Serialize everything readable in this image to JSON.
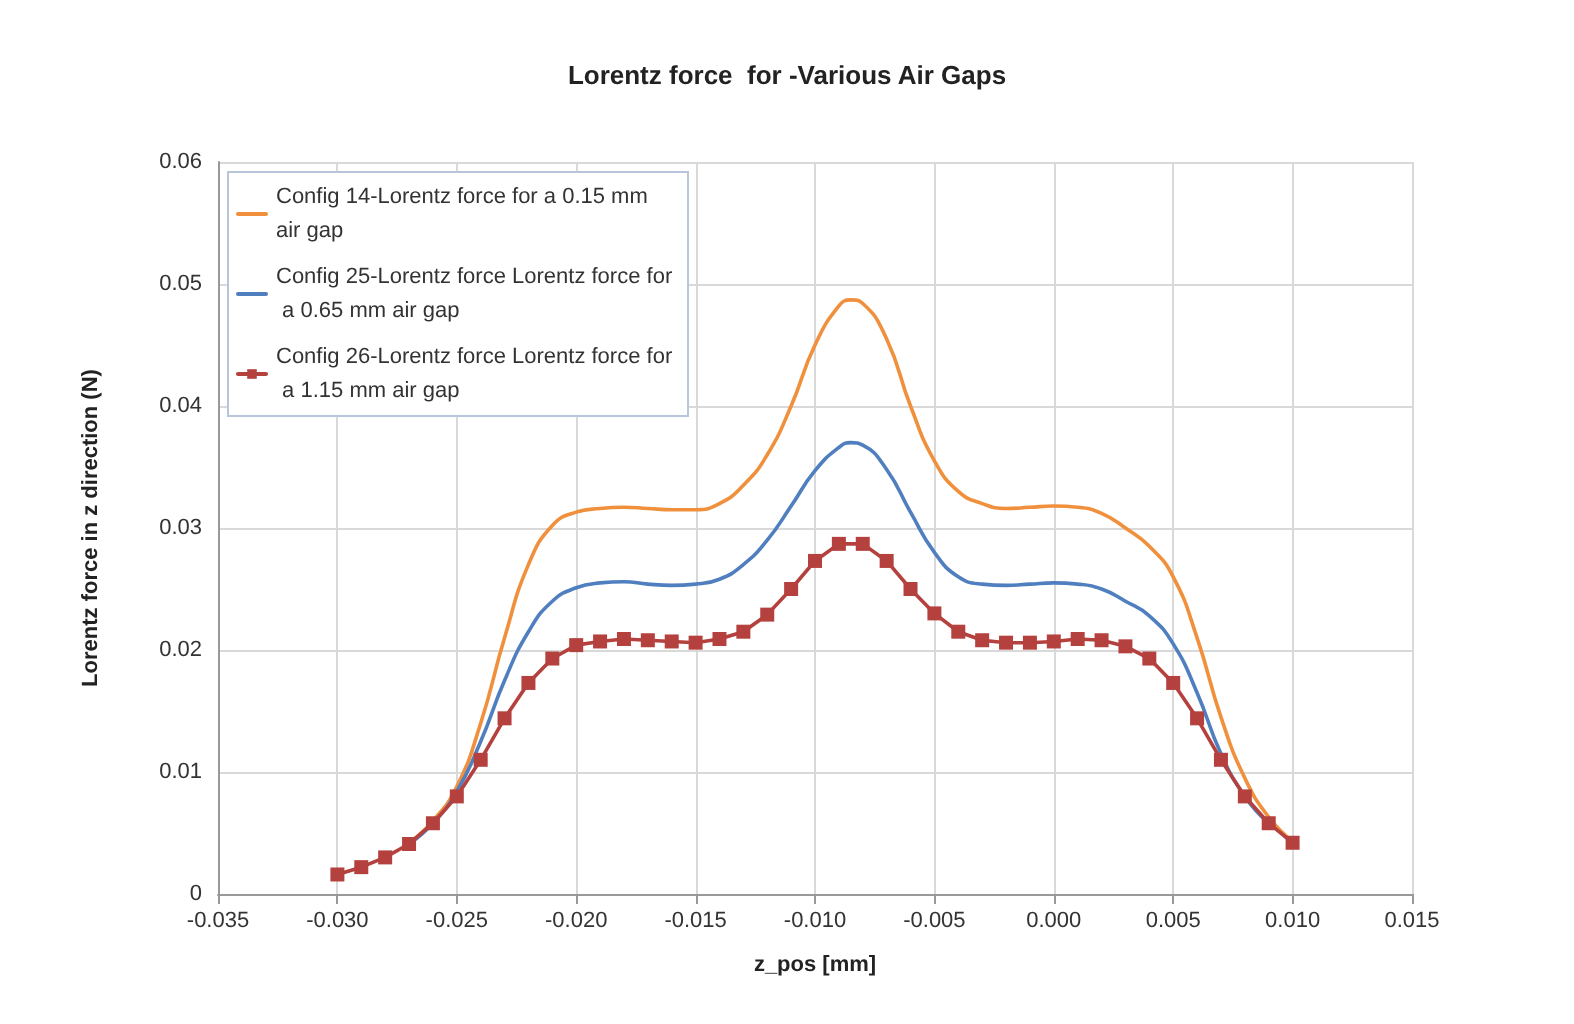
{
  "chart_data": {
    "type": "line",
    "title": "Lorentz force  for -Various Air Gaps",
    "xlabel": "z_pos [mm]",
    "ylabel": "Lorentz force in z direction (N)",
    "xlim": [
      -0.035,
      0.015
    ],
    "xticks": [
      {
        "value": -0.035,
        "label": "-0.035"
      },
      {
        "value": -0.03,
        "label": "-0.030"
      },
      {
        "value": -0.025,
        "label": "-0.025"
      },
      {
        "value": -0.02,
        "label": "-0.020"
      },
      {
        "value": -0.015,
        "label": "-0.015"
      },
      {
        "value": -0.01,
        "label": "-0.010"
      },
      {
        "value": -0.005,
        "label": "-0.005"
      },
      {
        "value": 0,
        "label": "0.000"
      },
      {
        "value": 0.005,
        "label": "0.005"
      },
      {
        "value": 0.01,
        "label": "0.010"
      },
      {
        "value": 0.015,
        "label": "0.015"
      }
    ],
    "ylim": [
      0,
      0.06
    ],
    "yticks": [
      0,
      0.01,
      0.02,
      0.03,
      0.04,
      0.05,
      0.06
    ],
    "grid": true,
    "legend": "top left",
    "series": [
      {
        "name": "Config 14-Lorentz force for a 0.15 mm air gap",
        "color": "#f0903c",
        "marker": "none",
        "x": [
          -0.027,
          -0.026,
          -0.025,
          -0.024,
          -0.023,
          -0.022,
          -0.021,
          -0.02,
          -0.019,
          -0.018,
          -0.017,
          -0.016,
          -0.015,
          -0.014,
          -0.013,
          -0.012,
          -0.011,
          -0.01,
          -0.009,
          -0.0085,
          -0.008,
          -0.007,
          -0.006,
          -0.005,
          -0.004,
          -0.003,
          -0.002,
          -0.001,
          0,
          0.001,
          0.002,
          0.003,
          0.004,
          0.005,
          0.006,
          0.007,
          0.008,
          0.009,
          0.01
        ],
        "values": [
          0.0042,
          0.006,
          0.0088,
          0.014,
          0.021,
          0.027,
          0.0302,
          0.0313,
          0.0316,
          0.0317,
          0.0316,
          0.0315,
          0.0315,
          0.032,
          0.0335,
          0.036,
          0.04,
          0.045,
          0.0482,
          0.0487,
          0.0484,
          0.0455,
          0.04,
          0.0355,
          0.033,
          0.032,
          0.0316,
          0.0317,
          0.0318,
          0.0317,
          0.0312,
          0.03,
          0.0285,
          0.026,
          0.021,
          0.0145,
          0.0095,
          0.0063,
          0.0043
        ]
      },
      {
        "name": "Config 25-Lorentz force Lorentz force for a 0.65 mm air gap",
        "color": "#4f7fbf",
        "marker": "none",
        "x": [
          -0.027,
          -0.026,
          -0.025,
          -0.024,
          -0.023,
          -0.022,
          -0.021,
          -0.02,
          -0.019,
          -0.018,
          -0.017,
          -0.016,
          -0.015,
          -0.014,
          -0.013,
          -0.012,
          -0.011,
          -0.01,
          -0.009,
          -0.0085,
          -0.008,
          -0.007,
          -0.006,
          -0.005,
          -0.004,
          -0.003,
          -0.002,
          -0.001,
          0,
          0.001,
          0.002,
          0.003,
          0.004,
          0.005,
          0.006,
          0.007,
          0.008,
          0.009
        ],
        "values": [
          0.0041,
          0.0058,
          0.0084,
          0.0125,
          0.0175,
          0.0215,
          0.024,
          0.0251,
          0.0255,
          0.0256,
          0.0254,
          0.0253,
          0.0254,
          0.0258,
          0.027,
          0.029,
          0.0318,
          0.0347,
          0.0366,
          0.037,
          0.0368,
          0.0348,
          0.0313,
          0.028,
          0.026,
          0.0254,
          0.0253,
          0.0254,
          0.0255,
          0.0254,
          0.025,
          0.024,
          0.0228,
          0.0205,
          0.0165,
          0.0115,
          0.008,
          0.0058
        ]
      },
      {
        "name": "Config 26-Lorentz force Lorentz force for a 1.15 mm air gap",
        "color": "#b5413f",
        "marker": "square",
        "x": [
          -0.03,
          -0.029,
          -0.028,
          -0.027,
          -0.026,
          -0.025,
          -0.024,
          -0.023,
          -0.022,
          -0.021,
          -0.02,
          -0.019,
          -0.018,
          -0.017,
          -0.016,
          -0.015,
          -0.014,
          -0.013,
          -0.012,
          -0.011,
          -0.01,
          -0.009,
          -0.008,
          -0.007,
          -0.006,
          -0.005,
          -0.004,
          -0.003,
          -0.002,
          -0.001,
          0,
          0.001,
          0.002,
          0.003,
          0.004,
          0.005,
          0.006,
          0.007,
          0.008,
          0.009,
          0.01
        ],
        "values": [
          0.0016,
          0.0022,
          0.003,
          0.0041,
          0.0058,
          0.008,
          0.011,
          0.0144,
          0.0173,
          0.0193,
          0.0204,
          0.0207,
          0.0209,
          0.0208,
          0.0207,
          0.0206,
          0.0209,
          0.0215,
          0.0229,
          0.025,
          0.0273,
          0.0287,
          0.0287,
          0.0273,
          0.025,
          0.023,
          0.0215,
          0.0208,
          0.0206,
          0.0206,
          0.0207,
          0.0209,
          0.0208,
          0.0203,
          0.0193,
          0.0173,
          0.0144,
          0.011,
          0.008,
          0.0058,
          0.0042
        ]
      }
    ]
  }
}
